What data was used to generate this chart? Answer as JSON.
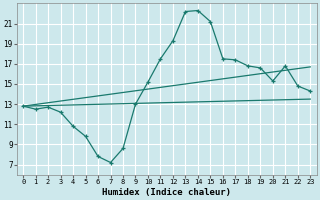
{
  "xlabel": "Humidex (Indice chaleur)",
  "bg_color": "#cde8ec",
  "grid_color": "#ffffff",
  "line_color": "#1a7a6e",
  "x_ticks": [
    0,
    1,
    2,
    3,
    4,
    5,
    6,
    7,
    8,
    9,
    10,
    11,
    12,
    13,
    14,
    15,
    16,
    17,
    18,
    19,
    20,
    21,
    22,
    23
  ],
  "y_ticks": [
    7,
    9,
    11,
    13,
    15,
    17,
    19,
    21
  ],
  "ylim": [
    6.0,
    23.0
  ],
  "xlim": [
    -0.5,
    23.5
  ],
  "line1_x": [
    0,
    1,
    2,
    3,
    4,
    5,
    6,
    7,
    8,
    9,
    10,
    11,
    12,
    13,
    14,
    15,
    16,
    17,
    18,
    19,
    20,
    21,
    22,
    23
  ],
  "line1_y": [
    12.8,
    12.5,
    12.7,
    12.2,
    10.8,
    9.8,
    7.8,
    7.2,
    8.6,
    13.0,
    15.2,
    17.5,
    19.3,
    22.2,
    22.3,
    21.2,
    17.5,
    17.4,
    16.8,
    16.6,
    15.3,
    16.8,
    14.8,
    14.3
  ],
  "line2_x": [
    0,
    23
  ],
  "line2_y": [
    12.8,
    13.5
  ],
  "line3_x": [
    0,
    23
  ],
  "line3_y": [
    12.8,
    16.7
  ]
}
